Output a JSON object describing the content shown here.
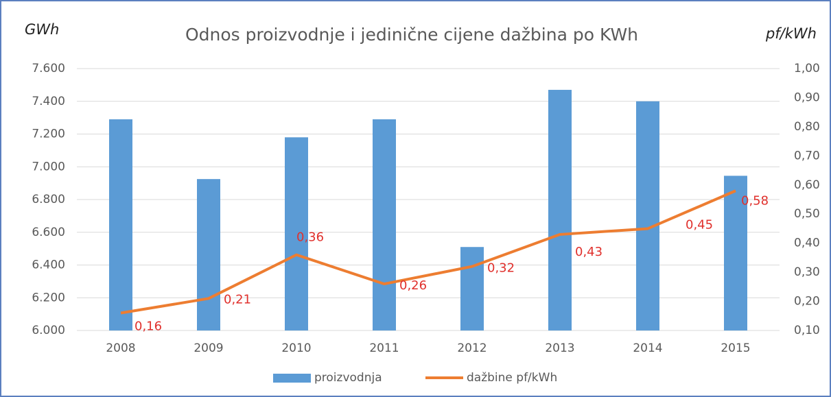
{
  "chart_data": {
    "type": "bar",
    "title": "Odnos proizvodnje i jedinične cijene dažbina po KWh",
    "y_label": "GWh",
    "y2_label": "pf/kWh",
    "categories": [
      "2008",
      "2009",
      "2010",
      "2011",
      "2012",
      "2013",
      "2014",
      "2015"
    ],
    "series": [
      {
        "name": "proizvodnja",
        "type": "bar",
        "color": "#5b9bd5",
        "axis": "y",
        "values": [
          7290,
          6925,
          7180,
          7290,
          6510,
          7470,
          7400,
          6945
        ]
      },
      {
        "name": "dažbine pf/kWh",
        "type": "line",
        "color": "#ed7d31",
        "axis": "y2",
        "values": [
          0.16,
          0.21,
          0.36,
          0.26,
          0.32,
          0.43,
          0.45,
          0.58
        ],
        "value_labels": [
          "0,16",
          "0,21",
          "0,36",
          "0,26",
          "0,32",
          "0,43",
          "0,45",
          "0,58"
        ],
        "label_color": "#e0302c"
      }
    ],
    "ylim": [
      6000,
      7600
    ],
    "yticks": [
      {
        "value": 6000,
        "label": "6.000"
      },
      {
        "value": 6200,
        "label": "6.200"
      },
      {
        "value": 6400,
        "label": "6.400"
      },
      {
        "value": 6600,
        "label": "6.600"
      },
      {
        "value": 6800,
        "label": "6.800"
      },
      {
        "value": 7000,
        "label": "7.000"
      },
      {
        "value": 7200,
        "label": "7.200"
      },
      {
        "value": 7400,
        "label": "7.400"
      },
      {
        "value": 7600,
        "label": "7.600"
      }
    ],
    "y2lim": [
      0.1,
      1.0
    ],
    "y2ticks": [
      {
        "value": 0.1,
        "label": "0,10"
      },
      {
        "value": 0.2,
        "label": "0,20"
      },
      {
        "value": 0.3,
        "label": "0,30"
      },
      {
        "value": 0.4,
        "label": "0,40"
      },
      {
        "value": 0.5,
        "label": "0,50"
      },
      {
        "value": 0.6,
        "label": "0,60"
      },
      {
        "value": 0.7,
        "label": "0,70"
      },
      {
        "value": 0.8,
        "label": "0,80"
      },
      {
        "value": 0.9,
        "label": "0,90"
      },
      {
        "value": 1.0,
        "label": "1,00"
      }
    ],
    "grid": true,
    "legend": "bottom"
  }
}
